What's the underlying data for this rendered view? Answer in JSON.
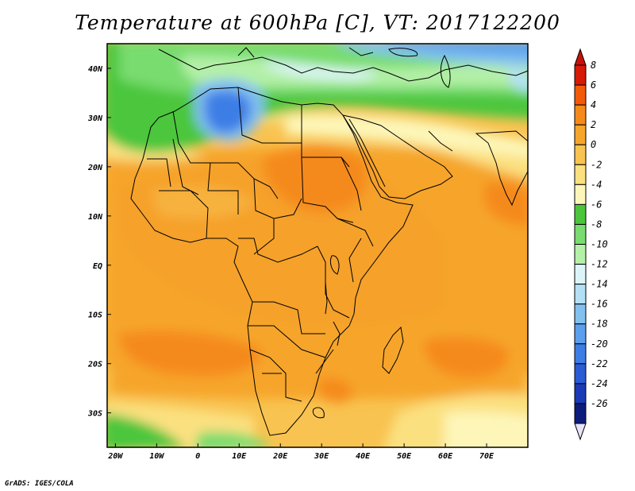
{
  "title": "Temperature at 600hPa [C], VT: 2017122200",
  "credit": "GrADS: IGES/COLA",
  "map": {
    "projection": "latlon",
    "lon_range": [
      -22,
      80
    ],
    "lat_range": [
      -37,
      45
    ],
    "x_ticks": [
      {
        "lon": -20,
        "label": "20W"
      },
      {
        "lon": -10,
        "label": "10W"
      },
      {
        "lon": 0,
        "label": "0"
      },
      {
        "lon": 10,
        "label": "10E"
      },
      {
        "lon": 20,
        "label": "20E"
      },
      {
        "lon": 30,
        "label": "30E"
      },
      {
        "lon": 40,
        "label": "40E"
      },
      {
        "lon": 50,
        "label": "50E"
      },
      {
        "lon": 60,
        "label": "60E"
      },
      {
        "lon": 70,
        "label": "70E"
      }
    ],
    "y_ticks": [
      {
        "lat": 40,
        "label": "40N"
      },
      {
        "lat": 30,
        "label": "30N"
      },
      {
        "lat": 20,
        "label": "20N"
      },
      {
        "lat": 10,
        "label": "10N"
      },
      {
        "lat": 0,
        "label": "EQ"
      },
      {
        "lat": -10,
        "label": "10S"
      },
      {
        "lat": -20,
        "label": "20S"
      },
      {
        "lat": -30,
        "label": "30S"
      }
    ]
  },
  "colorbar": {
    "levels": [
      8,
      6,
      4,
      2,
      0,
      -2,
      -4,
      -6,
      -8,
      -10,
      -12,
      -14,
      -16,
      -18,
      -20,
      -22,
      -24,
      -26
    ],
    "colors": [
      "#d61a06",
      "#f25a0a",
      "#f58a1a",
      "#f6a52c",
      "#f8c350",
      "#fbe080",
      "#fdf6b8",
      "#4bc63c",
      "#78dc6e",
      "#b4f0a8",
      "#dcf4f8",
      "#b4e0f6",
      "#82c0f0",
      "#5aa0ec",
      "#3c7ee6",
      "#2a5cd6",
      "#1a3ab8",
      "#0c1c7c"
    ],
    "over_color": "#c8100a",
    "under_color": "#e8e2fa"
  }
}
